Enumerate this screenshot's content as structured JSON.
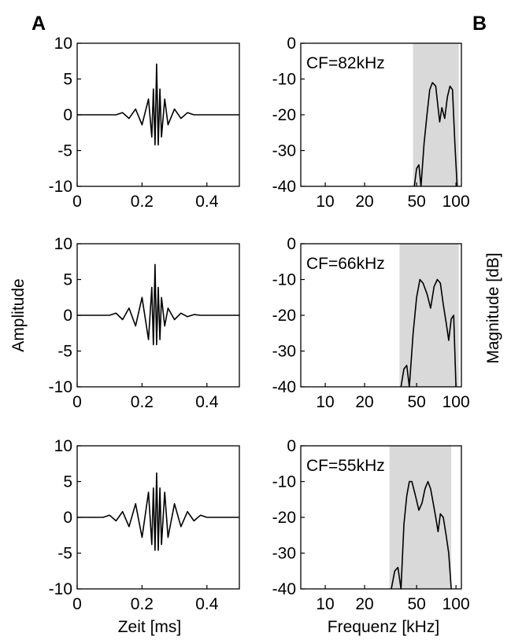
{
  "panel_labels": [
    "A",
    "B"
  ],
  "axis_labels": {
    "left_y": "Amplitude",
    "left_x": "Zeit [ms]",
    "right_y": "Magnitude  [dB]",
    "right_x": "Frequenz [kHz]"
  },
  "colors": {
    "band": "#d9d9d9",
    "line": "#000000",
    "frame": "#000000"
  },
  "chart_data": [
    {
      "type": "line",
      "panel": "A",
      "row": 1,
      "xlabel": "",
      "ylabel": "",
      "xlim": [
        0,
        0.5
      ],
      "ylim": [
        -10,
        10
      ],
      "xticks": [
        {
          "v": 0,
          "t": "0"
        },
        {
          "v": 0.2,
          "t": "0.2"
        },
        {
          "v": 0.4,
          "t": "0.4"
        }
      ],
      "yticks": [
        {
          "v": 10,
          "t": "10"
        },
        {
          "v": 5,
          "t": "5"
        },
        {
          "v": 0,
          "t": "0"
        },
        {
          "v": -5,
          "t": "-5"
        },
        {
          "v": -10,
          "t": "-10"
        }
      ],
      "x": [
        0,
        0.12,
        0.14,
        0.16,
        0.18,
        0.2,
        0.22,
        0.23,
        0.235,
        0.24,
        0.245,
        0.25,
        0.255,
        0.26,
        0.27,
        0.28,
        0.3,
        0.32,
        0.34,
        0.36,
        0.38,
        0.5
      ],
      "y": [
        0,
        0,
        0.3,
        -0.5,
        0.8,
        -1.4,
        2.2,
        -3.1,
        3.6,
        -4.2,
        7.1,
        -4.2,
        3.6,
        -3.1,
        2.2,
        -1.4,
        0.8,
        -0.5,
        0.3,
        0,
        0,
        0
      ]
    },
    {
      "type": "line",
      "panel": "B",
      "row": 1,
      "annotation": "CF=82kHz",
      "xlabel": "",
      "ylabel": "",
      "xscale": "log",
      "xlim": [
        6.5,
        110
      ],
      "ylim": [
        -40,
        0
      ],
      "xticks": [
        {
          "v": 10,
          "t": "10"
        },
        {
          "v": 20,
          "t": "20"
        },
        {
          "v": 50,
          "t": "50"
        },
        {
          "v": 100,
          "t": "100"
        }
      ],
      "yticks": [
        {
          "v": 0,
          "t": "0"
        },
        {
          "v": -10,
          "t": "-10"
        },
        {
          "v": -20,
          "t": "-20"
        },
        {
          "v": -30,
          "t": "-30"
        },
        {
          "v": -40,
          "t": "-40"
        }
      ],
      "band": [
        47,
        105
      ],
      "x": [
        48,
        50,
        52,
        54,
        57,
        60,
        63,
        66,
        70,
        75,
        78,
        82,
        86,
        90,
        94,
        98,
        102
      ],
      "y": [
        -40,
        -35,
        -34,
        -40,
        -28,
        -20,
        -13,
        -11,
        -12,
        -22,
        -18,
        -21,
        -15,
        -12,
        -13,
        -28,
        -40
      ]
    },
    {
      "type": "line",
      "panel": "A",
      "row": 2,
      "xlabel": "",
      "ylabel": "",
      "xlim": [
        0,
        0.5
      ],
      "ylim": [
        -10,
        10
      ],
      "xticks": [
        {
          "v": 0,
          "t": "0"
        },
        {
          "v": 0.2,
          "t": "0.2"
        },
        {
          "v": 0.4,
          "t": "0.4"
        }
      ],
      "yticks": [
        {
          "v": 10,
          "t": "10"
        },
        {
          "v": 5,
          "t": "5"
        },
        {
          "v": 0,
          "t": "0"
        },
        {
          "v": -5,
          "t": "-5"
        },
        {
          "v": -10,
          "t": "-10"
        }
      ],
      "x": [
        0,
        0.1,
        0.12,
        0.14,
        0.16,
        0.18,
        0.2,
        0.22,
        0.23,
        0.235,
        0.24,
        0.245,
        0.25,
        0.255,
        0.26,
        0.27,
        0.28,
        0.3,
        0.32,
        0.34,
        0.36,
        0.38,
        0.5
      ],
      "y": [
        0,
        0,
        0.3,
        -0.6,
        1.0,
        -1.5,
        2.5,
        -3.4,
        3.9,
        -4.1,
        7.1,
        -4.1,
        3.9,
        -3.4,
        2.5,
        -1.5,
        1.0,
        -0.6,
        0.3,
        -0.2,
        0.1,
        0,
        0
      ]
    },
    {
      "type": "line",
      "panel": "B",
      "row": 2,
      "annotation": "CF=66kHz",
      "xlabel": "",
      "ylabel": "",
      "xscale": "log",
      "xlim": [
        6.5,
        110
      ],
      "ylim": [
        -40,
        0
      ],
      "xticks": [
        {
          "v": 10,
          "t": "10"
        },
        {
          "v": 20,
          "t": "20"
        },
        {
          "v": 50,
          "t": "50"
        },
        {
          "v": 100,
          "t": "100"
        }
      ],
      "yticks": [
        {
          "v": 0,
          "t": "0"
        },
        {
          "v": -10,
          "t": "-10"
        },
        {
          "v": -20,
          "t": "-20"
        },
        {
          "v": -30,
          "t": "-30"
        },
        {
          "v": -40,
          "t": "-40"
        }
      ],
      "band": [
        37,
        105
      ],
      "x": [
        38,
        40,
        42,
        44,
        47,
        50,
        53,
        56,
        60,
        64,
        68,
        72,
        76,
        80,
        84,
        88,
        92,
        96,
        100
      ],
      "y": [
        -40,
        -35,
        -34,
        -40,
        -25,
        -15,
        -10,
        -11,
        -14,
        -18,
        -12,
        -10,
        -11,
        -17,
        -22,
        -27,
        -21,
        -20,
        -40
      ]
    },
    {
      "type": "line",
      "panel": "A",
      "row": 3,
      "xlabel": "",
      "ylabel": "",
      "xlim": [
        0,
        0.5
      ],
      "ylim": [
        -10,
        10
      ],
      "xticks": [
        {
          "v": 0,
          "t": "0"
        },
        {
          "v": 0.2,
          "t": "0.2"
        },
        {
          "v": 0.4,
          "t": "0.4"
        }
      ],
      "yticks": [
        {
          "v": 10,
          "t": "10"
        },
        {
          "v": 5,
          "t": "5"
        },
        {
          "v": 0,
          "t": "0"
        },
        {
          "v": -5,
          "t": "-5"
        },
        {
          "v": -10,
          "t": "-10"
        }
      ],
      "x": [
        0,
        0.08,
        0.1,
        0.12,
        0.14,
        0.16,
        0.18,
        0.2,
        0.22,
        0.23,
        0.235,
        0.24,
        0.245,
        0.25,
        0.255,
        0.26,
        0.27,
        0.28,
        0.3,
        0.32,
        0.34,
        0.36,
        0.38,
        0.4,
        0.5
      ],
      "y": [
        0,
        0,
        0.3,
        -0.5,
        0.8,
        -1.3,
        1.9,
        -2.8,
        3.5,
        -3.8,
        4.1,
        -4.6,
        6.2,
        -4.6,
        4.1,
        -3.8,
        3.5,
        -2.8,
        1.9,
        -1.3,
        0.8,
        -0.5,
        0.3,
        0,
        0
      ]
    },
    {
      "type": "line",
      "panel": "B",
      "row": 3,
      "annotation": "CF=55kHz",
      "xlabel": "",
      "ylabel": "",
      "xscale": "log",
      "xlim": [
        6.5,
        110
      ],
      "ylim": [
        -40,
        0
      ],
      "xticks": [
        {
          "v": 10,
          "t": "10"
        },
        {
          "v": 20,
          "t": "20"
        },
        {
          "v": 50,
          "t": "50"
        },
        {
          "v": 100,
          "t": "100"
        }
      ],
      "yticks": [
        {
          "v": 0,
          "t": "0"
        },
        {
          "v": -10,
          "t": "-10"
        },
        {
          "v": -20,
          "t": "-20"
        },
        {
          "v": -30,
          "t": "-30"
        },
        {
          "v": -40,
          "t": "-40"
        }
      ],
      "band": [
        31,
        92
      ],
      "x": [
        32,
        34,
        36,
        38,
        40,
        42,
        44,
        46,
        49,
        52,
        55,
        58,
        61,
        64,
        67,
        70,
        73,
        76,
        80,
        84,
        88,
        92
      ],
      "y": [
        -40,
        -35,
        -34,
        -40,
        -22,
        -14,
        -10,
        -10,
        -14,
        -18,
        -16,
        -12,
        -10,
        -12,
        -16,
        -20,
        -24,
        -19,
        -20,
        -25,
        -30,
        -40
      ]
    }
  ]
}
